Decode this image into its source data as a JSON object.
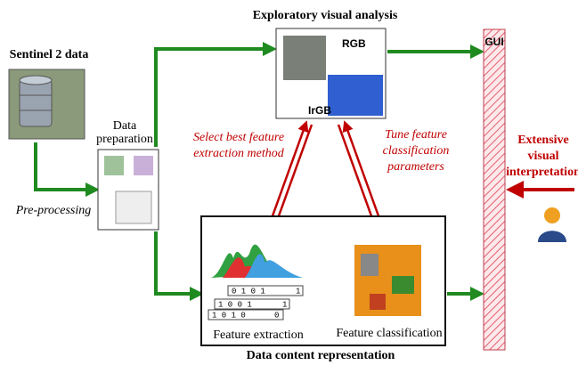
{
  "title": "Exploratory visual analysis",
  "nodes": {
    "sentinel": "Sentinel 2 data",
    "data_preparation": [
      "Data",
      "preparation"
    ],
    "pre_processing": "Pre-processing",
    "rgb": "RGB",
    "irgb": "IrGB",
    "gui": "GUI",
    "interpretation": [
      "Extensive",
      "visual",
      "interpretation"
    ],
    "feature_extraction": "Feature extraction",
    "feature_classification": "Feature classification",
    "representation": "Data content representation",
    "select_method": [
      "Select best feature",
      "extraction method"
    ],
    "tune_parameters": [
      "Tune feature",
      "classification",
      "parameters"
    ],
    "binary_rows": [
      [
        "0 1 0 1",
        "1"
      ],
      [
        "1 0 0 1",
        "1"
      ],
      [
        "1 0 1 0",
        "0"
      ]
    ]
  }
}
